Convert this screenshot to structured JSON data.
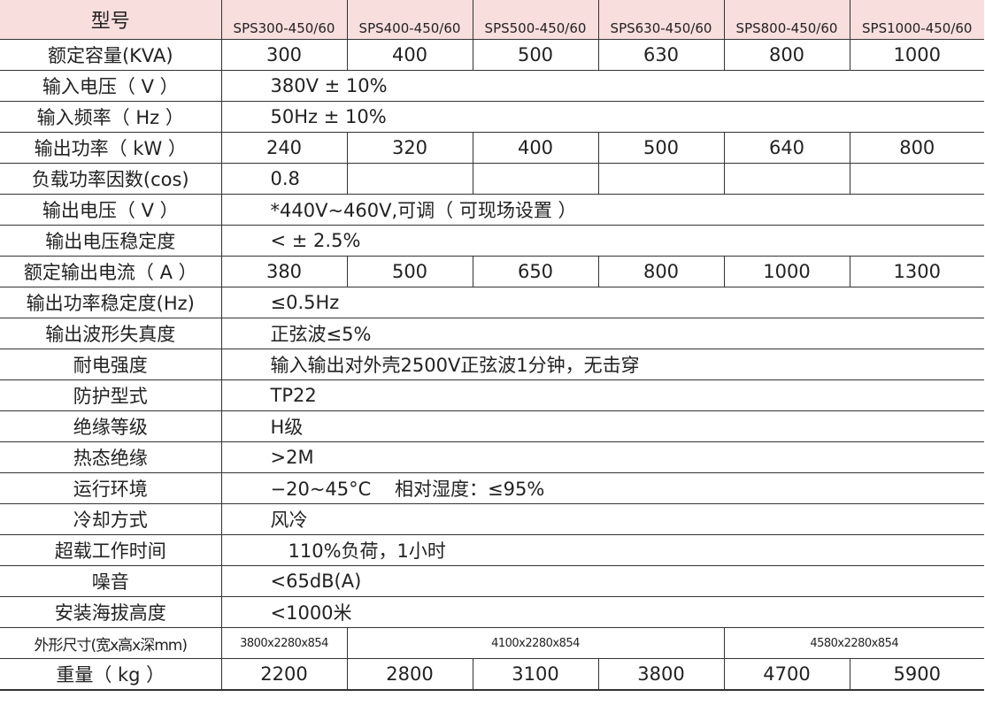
{
  "header": {
    "label": "型号",
    "models": [
      "SPS300-450/60",
      "SPS400-450/60",
      "SPS500-450/60",
      "SPS630-450/60",
      "SPS800-450/60",
      "SPS1000-450/60"
    ]
  },
  "rows": {
    "capacity": {
      "label": "额定容量(KVA)",
      "values": [
        "300",
        "400",
        "500",
        "630",
        "800",
        "1000"
      ]
    },
    "input_voltage": {
      "label": "输入电压（ V ）",
      "value": "380V ± 10%"
    },
    "input_freq": {
      "label": "输入频率（ Hz ）",
      "value": "50Hz ± 10%"
    },
    "output_power": {
      "label": "输出功率（ kW ）",
      "values": [
        "240",
        "320",
        "400",
        "500",
        "640",
        "800"
      ]
    },
    "power_factor": {
      "label": "负载功率因数(cos)",
      "values": [
        "0.8",
        "",
        "",
        "",
        "",
        ""
      ]
    },
    "output_voltage": {
      "label": "输出电压（ V ）",
      "value": "*440V~460V,可调（ 可现场设置 ）"
    },
    "voltage_stability": {
      "label": "输出电压稳定度",
      "value": "< ± 2.5%"
    },
    "rated_current": {
      "label": "额定输出电流（ A ）",
      "values": [
        "380",
        "500",
        "650",
        "800",
        "1000",
        "1300"
      ]
    },
    "power_stability": {
      "label": "输出功率稳定度(Hz)",
      "value": "≤0.5Hz"
    },
    "waveform_distortion": {
      "label": "输出波形失真度",
      "value": "正弦波≤5%"
    },
    "dielectric_strength": {
      "label": "耐电强度",
      "value": "输入输出对外壳2500V正弦波1分钟，无击穿"
    },
    "protection": {
      "label": "防护型式",
      "value": "TP22"
    },
    "insulation_class": {
      "label": "绝缘等级",
      "value": "H级"
    },
    "hot_insulation": {
      "label": "热态绝缘",
      "value": ">2M"
    },
    "environment": {
      "label": "运行环境",
      "value": "−20~45°C    相对湿度：≤95%"
    },
    "cooling": {
      "label": "冷却方式",
      "value": "风冷"
    },
    "overload": {
      "label": "超载工作时间",
      "value": "110%负荷，1小时"
    },
    "noise": {
      "label": "噪音",
      "value": "<65dB(A)"
    },
    "altitude": {
      "label": "安装海拔高度",
      "value": "<1000米"
    },
    "dimensions": {
      "label": "外形尺寸(宽x高x深mm)",
      "values": [
        "3800x2280x854",
        "4100x2280x854",
        "4580x2280x854"
      ]
    },
    "weight": {
      "label": "重量（ kg ）",
      "values": [
        "2200",
        "2800",
        "3100",
        "3800",
        "4700",
        "5900"
      ]
    }
  },
  "colors": {
    "header_bg": "#f9dede",
    "border": "#333333"
  }
}
